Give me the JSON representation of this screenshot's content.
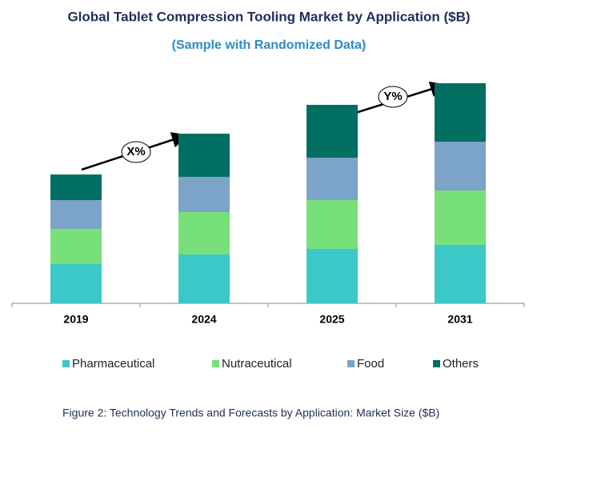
{
  "chart_data": {
    "type": "stacked_bar",
    "title": "Global Tablet Compression Tooling Market by Application ($B)",
    "subtitle": "(Sample with Randomized Data)",
    "caption": "Figure 2: Technology  Trends  and Forecasts by Application: Market Size ($B)",
    "categories": [
      "2019",
      "2024",
      "2025",
      "2031"
    ],
    "series": [
      {
        "name": "Pharmaceutical",
        "color": "#3cc8c8",
        "values": [
          49,
          61,
          68,
          73
        ]
      },
      {
        "name": "Nutraceutical",
        "color": "#78e07a",
        "values": [
          44,
          53,
          61,
          68
        ]
      },
      {
        "name": "Food",
        "color": "#7ca3c8",
        "values": [
          36,
          44,
          53,
          61
        ]
      },
      {
        "name": "Others",
        "color": "#006f62",
        "values": [
          32,
          54,
          66,
          73
        ]
      }
    ],
    "annotations": [
      "X%",
      "Y%"
    ]
  }
}
